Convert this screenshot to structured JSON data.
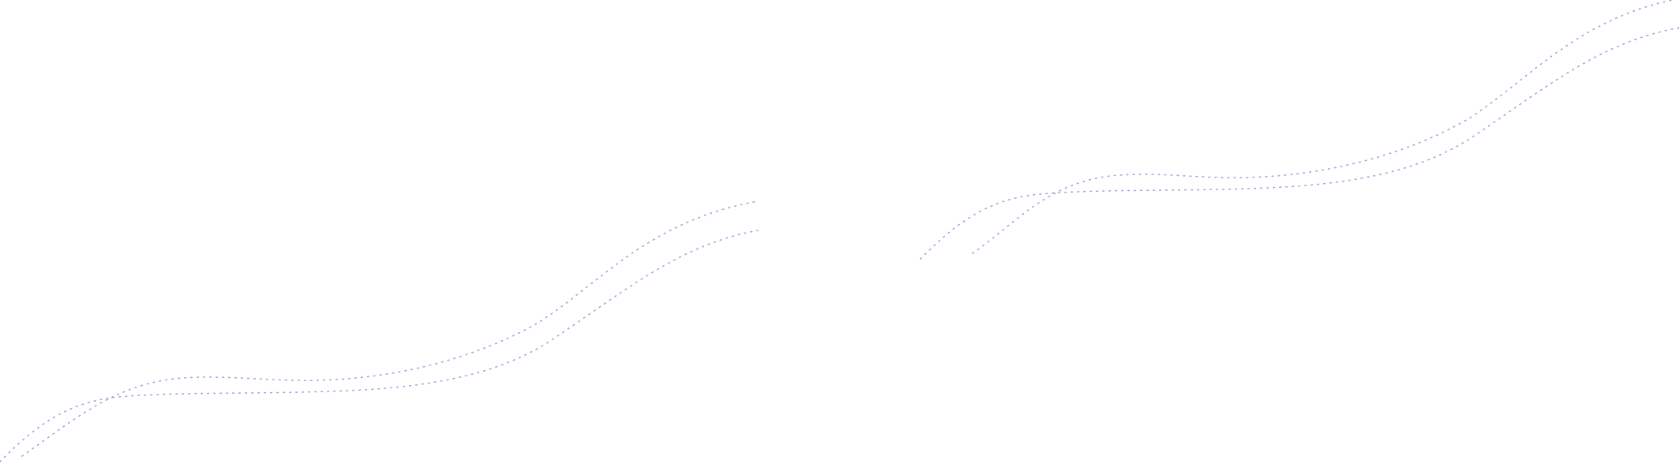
{
  "decoration": {
    "type": "dotted-wave-lines",
    "line_color": "#a8a3dc",
    "background_color": "#ffffff"
  }
}
